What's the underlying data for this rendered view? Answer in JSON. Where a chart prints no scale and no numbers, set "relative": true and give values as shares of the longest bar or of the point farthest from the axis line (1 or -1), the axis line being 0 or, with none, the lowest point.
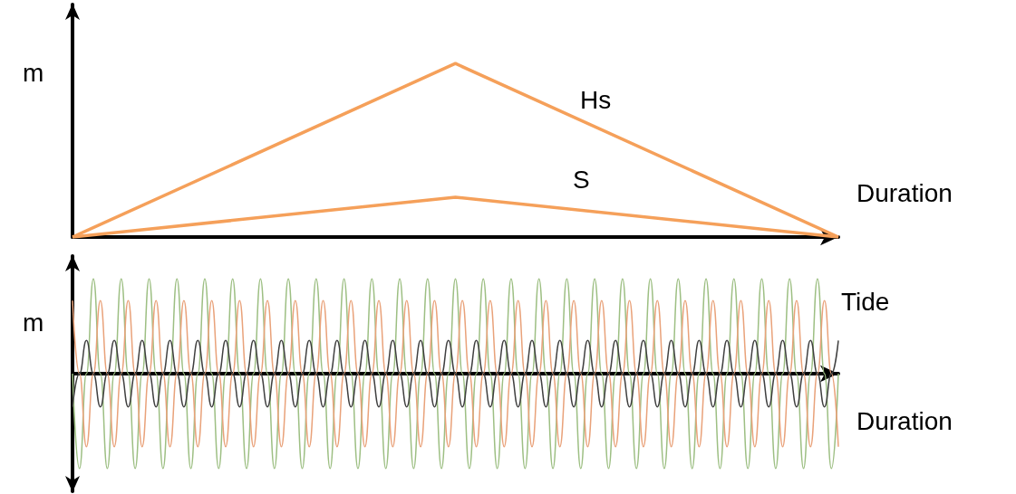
{
  "chart_data": [
    {
      "type": "line",
      "relative": true,
      "xlabel": "Duration",
      "ylabel": "m",
      "categories": [
        null,
        null,
        null
      ],
      "marker": "none",
      "legend": false,
      "grid": false,
      "series": [
        {
          "name": "Hs",
          "color": "#f5a05a",
          "values": [
            0,
            1,
            0
          ]
        },
        {
          "name": "S",
          "color": "#f5a05a",
          "values": [
            0,
            0.23,
            0
          ]
        }
      ]
    },
    {
      "type": "line",
      "relative": true,
      "xlabel": "Duration",
      "ylabel": "m",
      "annotations": [
        "Tide"
      ],
      "marker": "none",
      "legend": false,
      "grid": false,
      "categories": [
        null,
        null,
        null,
        null,
        null,
        null,
        null,
        null,
        null,
        null,
        null,
        null,
        null,
        null,
        null,
        null,
        null,
        null,
        null,
        null,
        null,
        null,
        null,
        null,
        null,
        null,
        null,
        null,
        null,
        null,
        null,
        null,
        null,
        null,
        null,
        null,
        null,
        null,
        null,
        null,
        null,
        null,
        null,
        null,
        null,
        null,
        null,
        null,
        null,
        null,
        null,
        null,
        null,
        null,
        null,
        null,
        null,
        null,
        null,
        null,
        null,
        null,
        null,
        null,
        null,
        null,
        null,
        null,
        null,
        null,
        null,
        null,
        null,
        null,
        null,
        null,
        null,
        null,
        null,
        null,
        null,
        null,
        null,
        null,
        null,
        null,
        null,
        null,
        null,
        null,
        null,
        null,
        null,
        null,
        null,
        null,
        null,
        null,
        null,
        null,
        null,
        null,
        null,
        null,
        null,
        null,
        null,
        null,
        null,
        null,
        null
      ],
      "series": [
        {
          "color": "#9dbf83",
          "values": [
            0,
            -1,
            0,
            1,
            0,
            -1,
            0,
            1,
            0,
            -1,
            0,
            1,
            0,
            -1,
            0,
            1,
            0,
            -1,
            0,
            1,
            0,
            -1,
            0,
            1,
            0,
            -1,
            0,
            1,
            0,
            -1,
            0,
            1,
            0,
            -1,
            0,
            1,
            0,
            -1,
            0,
            1,
            0,
            -1,
            0,
            1,
            0,
            -1,
            0,
            1,
            0,
            -1,
            0,
            1,
            0,
            -1,
            0,
            1,
            0,
            -1,
            0,
            1,
            0,
            -1,
            0,
            1,
            0,
            -1,
            0,
            1,
            0,
            -1,
            0,
            1,
            0,
            -1,
            0,
            1,
            0,
            -1,
            0,
            1,
            0,
            -1,
            0,
            1,
            0,
            -1,
            0,
            1,
            0,
            -1,
            0,
            1,
            0,
            -1,
            0,
            1,
            0,
            -1,
            0,
            1,
            0,
            -1,
            0,
            1,
            0,
            -1,
            0,
            1,
            0,
            -1,
            0
          ]
        },
        {
          "color": "#e9a27a",
          "values": [
            0.77,
            0,
            -0.77,
            0,
            0.77,
            0,
            -0.77,
            0,
            0.77,
            0,
            -0.77,
            0,
            0.77,
            0,
            -0.77,
            0,
            0.77,
            0,
            -0.77,
            0,
            0.77,
            0,
            -0.77,
            0,
            0.77,
            0,
            -0.77,
            0,
            0.77,
            0,
            -0.77,
            0,
            0.77,
            0,
            -0.77,
            0,
            0.77,
            0,
            -0.77,
            0,
            0.77,
            0,
            -0.77,
            0,
            0.77,
            0,
            -0.77,
            0,
            0.77,
            0,
            -0.77,
            0,
            0.77,
            0,
            -0.77,
            0,
            0.77,
            0,
            -0.77,
            0,
            0.77,
            0,
            -0.77,
            0,
            0.77,
            0,
            -0.77,
            0,
            0.77,
            0,
            -0.77,
            0,
            0.77,
            0,
            -0.77,
            0,
            0.77,
            0,
            -0.77,
            0,
            0.77,
            0,
            -0.77,
            0,
            0.77,
            0,
            -0.77,
            0,
            0.77,
            0,
            -0.77,
            0,
            0.77,
            0,
            -0.77,
            0,
            0.77,
            0,
            -0.77,
            0,
            0.77,
            0,
            -0.77,
            0,
            0.77,
            0,
            -0.77,
            0,
            0.77,
            0,
            -0.77
          ]
        },
        {
          "color": "#404040",
          "values": [
            -0.35,
            0,
            0.35,
            0,
            -0.35,
            0,
            0.35,
            0,
            -0.35,
            0,
            0.35,
            0,
            -0.35,
            0,
            0.35,
            0,
            -0.35,
            0,
            0.35,
            0,
            -0.35,
            0,
            0.35,
            0,
            -0.35,
            0,
            0.35,
            0,
            -0.35,
            0,
            0.35,
            0,
            -0.35,
            0,
            0.35,
            0,
            -0.35,
            0,
            0.35,
            0,
            -0.35,
            0,
            0.35,
            0,
            -0.35,
            0,
            0.35,
            0,
            -0.35,
            0,
            0.35,
            0,
            -0.35,
            0,
            0.35,
            0,
            -0.35,
            0,
            0.35,
            0,
            -0.35,
            0,
            0.35,
            0,
            -0.35,
            0,
            0.35,
            0,
            -0.35,
            0,
            0.35,
            0,
            -0.35,
            0,
            0.35,
            0,
            -0.35,
            0,
            0.35,
            0,
            -0.35,
            0,
            0.35,
            0,
            -0.35,
            0,
            0.35,
            0,
            -0.35,
            0,
            0.35,
            0,
            -0.35,
            0,
            0.35,
            0,
            -0.35,
            0,
            0.35,
            0,
            -0.35,
            0,
            0.35,
            0,
            -0.35,
            0,
            0.35,
            0,
            -0.35,
            0,
            0.35
          ]
        }
      ]
    }
  ]
}
